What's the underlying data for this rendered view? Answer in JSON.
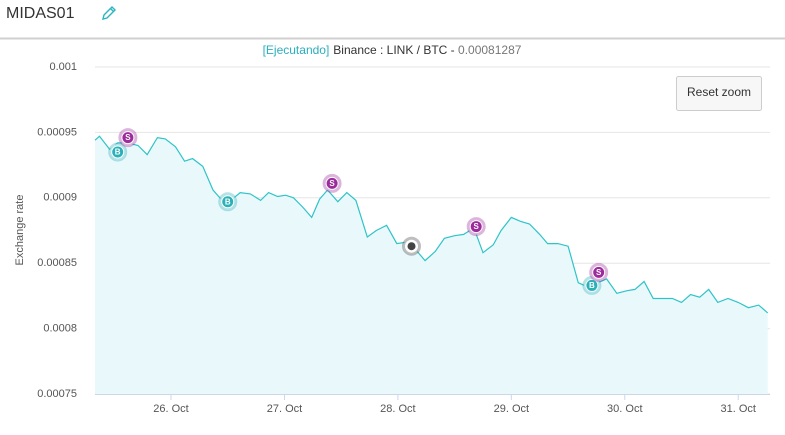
{
  "header": {
    "title": "MIDAS01"
  },
  "status": {
    "state": "[Ejecutando]",
    "market": "Binance :  LINK / BTC - ",
    "price": "0.00081287"
  },
  "button": {
    "label": "Reset zoom"
  },
  "chart_data": {
    "type": "area",
    "y_label": "Exchange rate",
    "xlim": [
      25.33,
      31.28
    ],
    "xticks": [
      {
        "value": 26,
        "label": "26. Oct"
      },
      {
        "value": 27,
        "label": "27. Oct"
      },
      {
        "value": 28,
        "label": "28. Oct"
      },
      {
        "value": 29,
        "label": "29. Oct"
      },
      {
        "value": 30,
        "label": "30. Oct"
      },
      {
        "value": 31,
        "label": "31. Oct"
      }
    ],
    "ylim": [
      0.00075,
      0.001
    ],
    "yticks": [
      0.00075,
      0.0008,
      0.00085,
      0.0009,
      0.00095,
      0.001
    ],
    "grid": true,
    "series": [
      {
        "color": "#2ec4c8",
        "fill": "#e9f8fb",
        "x": [
          25.33,
          25.37,
          25.46,
          25.53,
          25.62,
          25.71,
          25.79,
          25.88,
          25.95,
          26.04,
          26.12,
          26.19,
          26.28,
          26.37,
          26.45,
          26.54,
          26.61,
          26.7,
          26.79,
          26.86,
          26.94,
          27.01,
          27.08,
          27.16,
          27.24,
          27.31,
          27.38,
          27.47,
          27.55,
          27.63,
          27.73,
          27.81,
          27.9,
          27.99,
          28.07,
          28.14,
          28.24,
          28.33,
          28.41,
          28.5,
          28.58,
          28.67,
          28.75,
          28.84,
          28.91,
          29.0,
          29.08,
          29.16,
          29.25,
          29.32,
          29.41,
          29.5,
          29.59,
          29.67,
          29.76,
          29.84,
          29.93,
          30.02,
          30.09,
          30.17,
          30.25,
          30.33,
          30.42,
          30.5,
          30.58,
          30.66,
          30.74,
          30.82,
          30.91,
          31.0,
          31.09,
          31.18,
          31.26
        ],
        "values": [
          0.000944,
          0.000947,
          0.000937,
          0.000942,
          0.000942,
          0.00094,
          0.000933,
          0.000946,
          0.000945,
          0.000939,
          0.000928,
          0.00093,
          0.000924,
          0.000906,
          0.000898,
          0.000899,
          0.000904,
          0.000903,
          0.000898,
          0.000904,
          0.000901,
          0.000902,
          0.0009,
          0.000893,
          0.000885,
          0.000899,
          0.000906,
          0.000897,
          0.000904,
          0.000898,
          0.00087,
          0.000875,
          0.000879,
          0.000865,
          0.000866,
          0.000862,
          0.000852,
          0.000859,
          0.000869,
          0.000871,
          0.000872,
          0.000877,
          0.000858,
          0.000864,
          0.000875,
          0.000885,
          0.000882,
          0.00088,
          0.000872,
          0.000865,
          0.000865,
          0.000863,
          0.000835,
          0.000832,
          0.000835,
          0.000838,
          0.000827,
          0.000829,
          0.00083,
          0.000836,
          0.000823,
          0.000823,
          0.000823,
          0.00082,
          0.000826,
          0.000824,
          0.00083,
          0.00082,
          0.000823,
          0.00082,
          0.000816,
          0.000818,
          0.000812
        ]
      }
    ],
    "markers": [
      {
        "x": 25.53,
        "y": 0.000935,
        "label": "B"
      },
      {
        "x": 25.62,
        "y": 0.000946,
        "label": "S"
      },
      {
        "x": 26.5,
        "y": 0.000897,
        "label": "B"
      },
      {
        "x": 27.42,
        "y": 0.000911,
        "label": "S"
      },
      {
        "x": 28.12,
        "y": 0.000863
      },
      {
        "x": 28.69,
        "y": 0.000878,
        "label": "S"
      },
      {
        "x": 29.71,
        "y": 0.000833,
        "label": "B"
      },
      {
        "x": 29.77,
        "y": 0.000843,
        "label": "S"
      }
    ]
  }
}
